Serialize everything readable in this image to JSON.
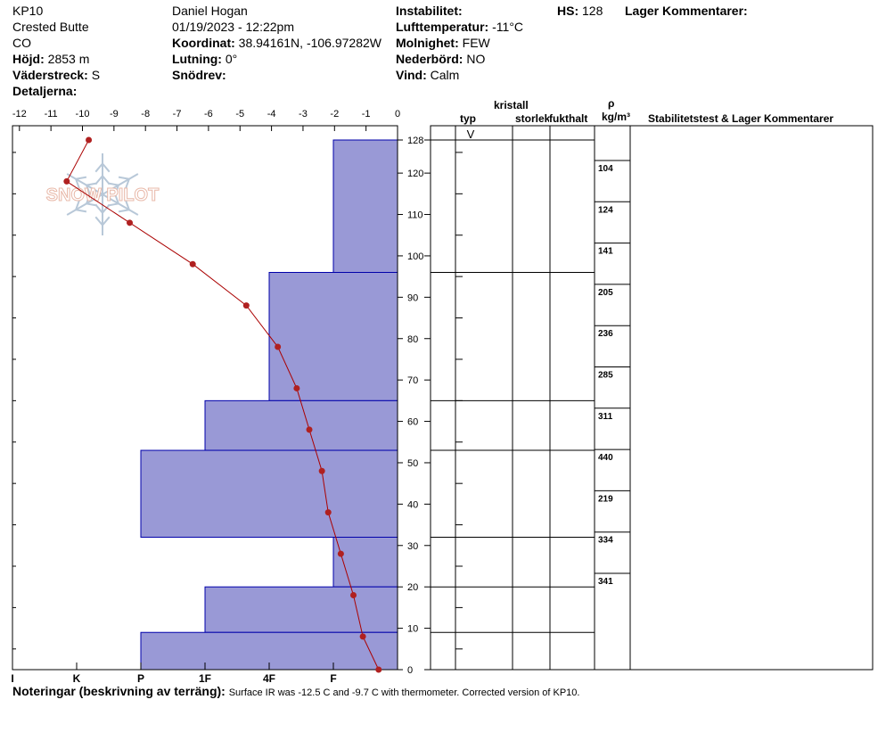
{
  "header": {
    "col1": [
      "KP10",
      "Crested Butte",
      "CO"
    ],
    "elevation_label": "Höjd:",
    "elevation": "2853 m",
    "aspect_label": "Väderstreck:",
    "aspect": "S",
    "details_label": "Detaljerna:",
    "observer": "Daniel Hogan",
    "datetime": "01/19/2023 - 12:22pm",
    "coord_label": "Koordinat:",
    "coord": "38.94161N, -106.97282W",
    "slope_label": "Lutning:",
    "slope": "0°",
    "drift_label": "Snödrev:",
    "instability_label": "Instabilitet:",
    "airtemp_label": "Lufttemperatur:",
    "airtemp": "-11°C",
    "sky_label": "Molnighet:",
    "sky": "FEW",
    "precip_label": "Nederbörd:",
    "precip": "NO",
    "wind_label": "Vind:",
    "wind": "Calm",
    "hs_label": "HS:",
    "hs": "128",
    "layer_comments_label": "Lager Kommentarer:"
  },
  "table_headers": {
    "crystal": "kristall",
    "type": "typ",
    "size": "storlek",
    "moisture": "fukthalt",
    "rho": "ρ",
    "density_unit": "kg/m³",
    "stability": "Stabilitetstest & Lager Kommentarer"
  },
  "logo": {
    "text": "SNOW PILOT"
  },
  "notes": {
    "label": "Noteringar (beskrivning av terräng):",
    "text": "Surface IR was -12.5 C and -9.7 C with thermometer. Corrected version of KP10."
  },
  "chart_data": {
    "type": "snow-profile",
    "temperature_axis": {
      "ticks": [
        "-12",
        "-11",
        "-10",
        "-9",
        "-8",
        "-7",
        "-6",
        "-5",
        "-4",
        "-3",
        "-2",
        "-1",
        "0"
      ],
      "range": [
        -12.5,
        0
      ]
    },
    "hardness_axis": {
      "ticks": [
        "I",
        "K",
        "P",
        "1F",
        "4F",
        "F"
      ],
      "values": [
        6,
        5,
        4,
        3,
        2,
        1
      ]
    },
    "depth_axis": {
      "ticks": [
        "0",
        "10",
        "20",
        "30",
        "40",
        "50",
        "60",
        "70",
        "80",
        "90",
        "100",
        "110",
        "120",
        "128"
      ],
      "range": [
        0,
        128
      ]
    },
    "temperature_profile": [
      {
        "depth": 128,
        "temp": -9.8
      },
      {
        "depth": 118,
        "temp": -10.5
      },
      {
        "depth": 108,
        "temp": -8.5
      },
      {
        "depth": 98,
        "temp": -6.5
      },
      {
        "depth": 88,
        "temp": -4.8
      },
      {
        "depth": 78,
        "temp": -3.8
      },
      {
        "depth": 68,
        "temp": -3.2
      },
      {
        "depth": 58,
        "temp": -2.8
      },
      {
        "depth": 48,
        "temp": -2.4
      },
      {
        "depth": 38,
        "temp": -2.2
      },
      {
        "depth": 28,
        "temp": -1.8
      },
      {
        "depth": 18,
        "temp": -1.4
      },
      {
        "depth": 8,
        "temp": -1.1
      },
      {
        "depth": 0,
        "temp": -0.6
      }
    ],
    "hardness_layers": [
      {
        "top": 128,
        "bottom": 96,
        "hardness": 1
      },
      {
        "top": 96,
        "bottom": 65,
        "hardness": 2
      },
      {
        "top": 65,
        "bottom": 53,
        "hardness": 3
      },
      {
        "top": 53,
        "bottom": 32,
        "hardness": 4
      },
      {
        "top": 32,
        "bottom": 20,
        "hardness": 1
      },
      {
        "top": 20,
        "bottom": 9,
        "hardness": 3
      },
      {
        "top": 9,
        "bottom": 0,
        "hardness": 4
      }
    ],
    "layer_boundaries": [
      128,
      96,
      65,
      53,
      32,
      20,
      9
    ],
    "top_grain_symbol": "V",
    "density_values": [
      "104",
      "124",
      "141",
      "205",
      "236",
      "285",
      "311",
      "440",
      "219",
      "334",
      "341"
    ],
    "colors": {
      "layer_fill": "#9999d6",
      "layer_stroke": "#0000aa",
      "temperature_line": "#aa0000",
      "temperature_point": "#b02020"
    }
  }
}
